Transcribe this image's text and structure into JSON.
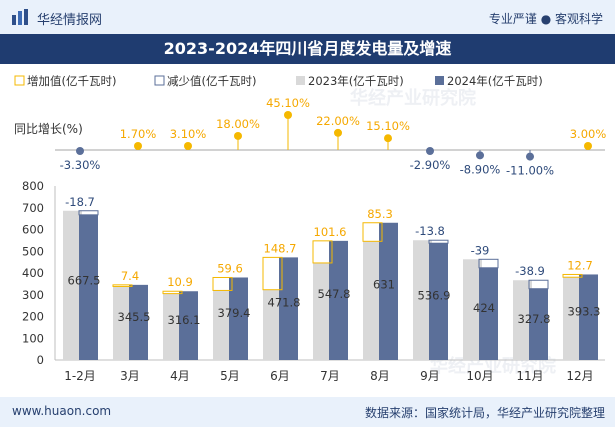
{
  "header": {
    "logo_text": "华经情报网",
    "slogan": "专业严谨 ● 客观科学",
    "title": "2023-2024年四川省月度发电量及增速"
  },
  "footer": {
    "site": "www.huaon.com",
    "source": "数据来源：国家统计局，华经产业研究院整理"
  },
  "watermark": "华经产业研究院",
  "colors": {
    "y2023": "#d9d9d9",
    "y2024": "#5b6f99",
    "increase": "#f5b800",
    "decrease": "#5b6f99",
    "marker_pos": "#f5b800",
    "marker_neg": "#5b6f99",
    "growth_pos_text": "#f5a800",
    "growth_neg_text": "#2e4a7a"
  },
  "chart_data": {
    "type": "bar",
    "title": "2023-2024年四川省月度发电量及增速",
    "categories": [
      "1-2月",
      "3月",
      "4月",
      "5月",
      "6月",
      "7月",
      "8月",
      "9月",
      "10月",
      "11月",
      "12月"
    ],
    "legend": [
      "增加值(亿千瓦时)",
      "减少值(亿千瓦时)",
      "2023年(亿千瓦时)",
      "2024年(亿千瓦时)"
    ],
    "series": [
      {
        "name": "2023年(亿千瓦时)",
        "values": [
          686.2,
          338.1,
          305.2,
          319.8,
          323.1,
          446.2,
          545.7,
          550.7,
          463,
          366.7,
          380.6
        ]
      },
      {
        "name": "2024年(亿千瓦时)",
        "values": [
          667.5,
          345.5,
          316.1,
          379.4,
          471.8,
          547.8,
          631,
          536.9,
          424,
          327.8,
          393.3
        ]
      }
    ],
    "value_labels_2024": [
      "667.5",
      "345.5",
      "316.1",
      "379.4",
      "471.8",
      "547.8",
      "631",
      "536.9",
      "424",
      "327.8",
      "393.3"
    ],
    "change": [
      -18.7,
      7.4,
      10.9,
      59.6,
      148.7,
      101.6,
      85.3,
      -13.8,
      -39,
      -38.9,
      12.7
    ],
    "change_labels": [
      "-18.7",
      "7.4",
      "10.9",
      "59.6",
      "148.7",
      "101.6",
      "85.3",
      "-13.8",
      "-39",
      "-38.9",
      "12.7"
    ],
    "growth": [
      -3.3,
      1.7,
      3.1,
      18.0,
      45.1,
      22.0,
      15.1,
      -2.9,
      -8.9,
      -11.0,
      3.0
    ],
    "growth_labels": [
      "-3.30%",
      "1.70%",
      "3.10%",
      "18.00%",
      "45.10%",
      "22.00%",
      "15.10%",
      "-2.90%",
      "-8.90%",
      "-11.00%",
      "3.00%"
    ],
    "growth_axis_label": "同比增长(%)",
    "y_ticks": [
      "0",
      "100",
      "200",
      "300",
      "400",
      "500",
      "600",
      "700",
      "800"
    ],
    "ylim": [
      0,
      800
    ]
  }
}
